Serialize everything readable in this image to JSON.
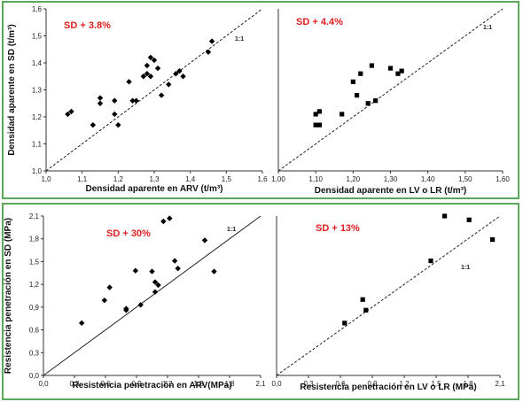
{
  "chart_data": [
    {
      "type": "scatter",
      "panel": "top-left",
      "annotation": "SD + 3.8%",
      "reference_label": "1:1",
      "reference_style": "dashed",
      "marker": "diamond",
      "xlabel": "Densidad aparente en ARV (t/m³)",
      "ylabel": "Densidad aparente en SD (t/m³)",
      "xlim": [
        1.0,
        1.6
      ],
      "ylim": [
        1.0,
        1.6
      ],
      "xticks": [
        "1,0",
        "1,1",
        "1,2",
        "1,3",
        "1,4",
        "1,5",
        "1,6"
      ],
      "yticks": [
        "1,0",
        "1,1",
        "1,2",
        "1,3",
        "1,4",
        "1,5",
        "1,6"
      ],
      "x": [
        1.06,
        1.07,
        1.13,
        1.15,
        1.15,
        1.19,
        1.19,
        1.2,
        1.23,
        1.24,
        1.25,
        1.27,
        1.28,
        1.29,
        1.28,
        1.3,
        1.29,
        1.31,
        1.32,
        1.34,
        1.36,
        1.37,
        1.38,
        1.45,
        1.46
      ],
      "y": [
        1.21,
        1.22,
        1.17,
        1.27,
        1.25,
        1.26,
        1.21,
        1.17,
        1.33,
        1.26,
        1.26,
        1.35,
        1.39,
        1.42,
        1.36,
        1.41,
        1.35,
        1.38,
        1.28,
        1.32,
        1.36,
        1.37,
        1.35,
        1.44,
        1.48
      ]
    },
    {
      "type": "scatter",
      "panel": "top-right",
      "annotation": "SD + 4.4%",
      "reference_label": "1:1",
      "reference_style": "dashed",
      "marker": "square",
      "xlabel": "Densidad aparente en LV o LR (t/m³)",
      "ylabel": "",
      "xlim": [
        1.0,
        1.6
      ],
      "ylim": [
        1.0,
        1.6
      ],
      "xticks": [
        "1,00",
        "1,10",
        "1,20",
        "1,30",
        "1,40",
        "1,50",
        "1,60"
      ],
      "x": [
        1.1,
        1.11,
        1.1,
        1.11,
        1.17,
        1.2,
        1.21,
        1.22,
        1.24,
        1.25,
        1.26,
        1.3,
        1.32,
        1.33
      ],
      "y": [
        1.21,
        1.22,
        1.17,
        1.17,
        1.21,
        1.33,
        1.28,
        1.36,
        1.25,
        1.39,
        1.26,
        1.38,
        1.36,
        1.37
      ]
    },
    {
      "type": "scatter",
      "panel": "bottom-left",
      "annotation": "SD + 30%",
      "reference_label": "1:1",
      "reference_style": "solid",
      "marker": "diamond",
      "xlabel": "Resistencia penetración en ARV(MPa)",
      "ylabel": "Resistencia penetración en SD (MPa)",
      "xlim": [
        0.0,
        2.1
      ],
      "ylim": [
        0.0,
        2.1
      ],
      "xticks": [
        "0,0",
        "0,3",
        "0,6",
        "0,9",
        "1,2",
        "1,5",
        "1,8",
        "2,1"
      ],
      "yticks": [
        "0,0",
        "0,3",
        "0,6",
        "0,9",
        "1,2",
        "1,5",
        "1,8",
        "2,1"
      ],
      "x": [
        0.37,
        0.59,
        0.64,
        0.8,
        0.8,
        0.89,
        0.94,
        1.05,
        1.08,
        1.08,
        1.11,
        1.16,
        1.22,
        1.27,
        1.3,
        1.56,
        1.65
      ],
      "y": [
        0.69,
        0.99,
        1.16,
        0.88,
        0.86,
        1.38,
        0.93,
        1.37,
        1.23,
        1.1,
        1.19,
        2.03,
        2.07,
        1.51,
        1.41,
        1.78,
        1.37
      ]
    },
    {
      "type": "scatter",
      "panel": "bottom-right",
      "annotation": "SD + 13%",
      "reference_label": "1:1",
      "reference_style": "dashed",
      "marker": "square",
      "xlabel": "Resistencia penetración en LV o LR (MPa)",
      "ylabel": "",
      "xlim": [
        0.0,
        2.1
      ],
      "ylim": [
        0.0,
        2.1
      ],
      "xticks": [
        "0,0",
        "0,3",
        "0,6",
        "0,9",
        "1,2",
        "1,5",
        "1,8",
        "2,1"
      ],
      "x": [
        0.64,
        0.81,
        0.84,
        1.45,
        1.58,
        1.81,
        2.03
      ],
      "y": [
        0.69,
        1.0,
        0.86,
        1.51,
        2.1,
        2.05,
        1.79
      ]
    }
  ]
}
